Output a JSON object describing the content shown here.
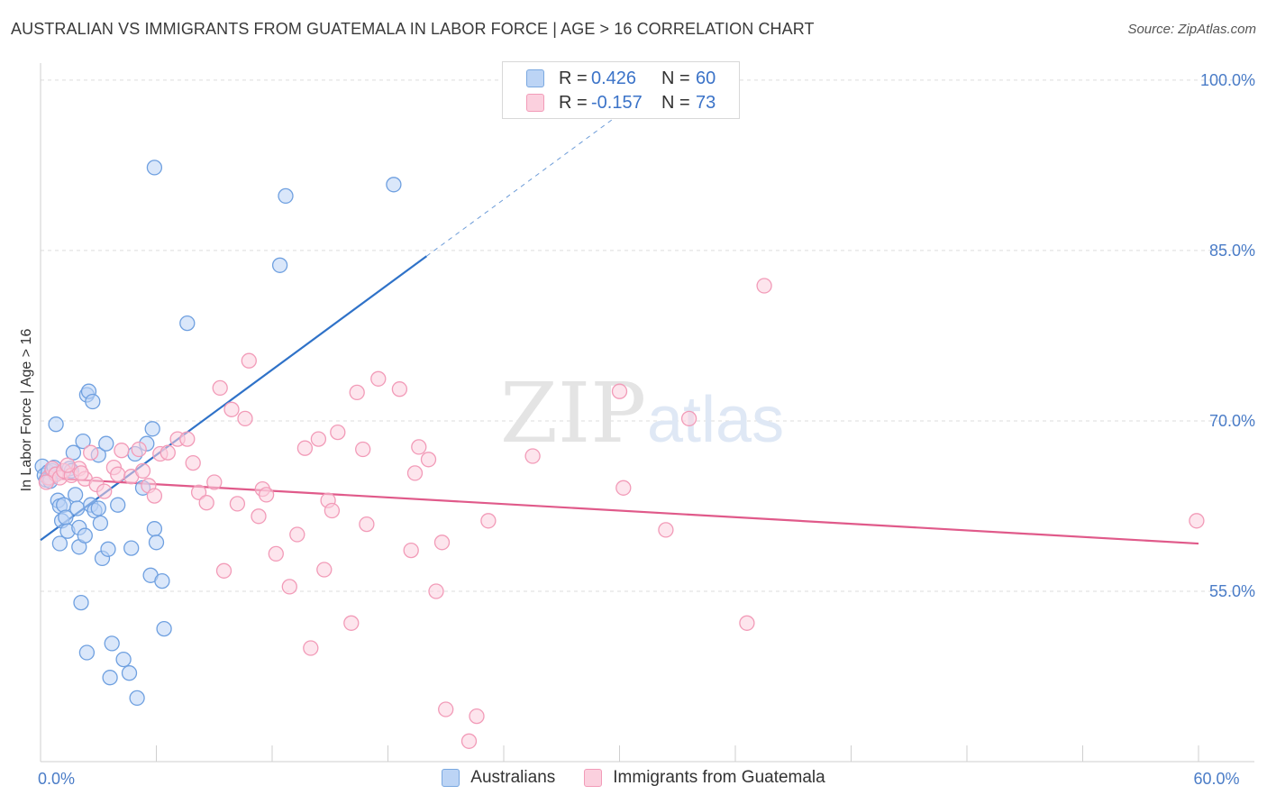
{
  "title": "AUSTRALIAN VS IMMIGRANTS FROM GUATEMALA IN LABOR FORCE | AGE > 16 CORRELATION CHART",
  "source": "Source: ZipAtlas.com",
  "watermark": {
    "zip": "ZIP",
    "atlas": "atlas"
  },
  "legend": {
    "rows": [
      {
        "r_label": "R =",
        "r_value": "0.426",
        "n_label": "N =",
        "n_value": "60",
        "color": "#7aa8e0",
        "fill": "#bcd4f5"
      },
      {
        "r_label": "R =",
        "r_value": "-0.157",
        "n_label": "N =",
        "n_value": "73",
        "color": "#f29bb8",
        "fill": "#fbd0de"
      }
    ]
  },
  "bottom_legend": [
    {
      "label": "Australians",
      "color": "#7aa8e0",
      "fill": "#bcd4f5"
    },
    {
      "label": "Immigrants from Guatemala",
      "color": "#f29bb8",
      "fill": "#fbd0de"
    }
  ],
  "chart_data": {
    "type": "scatter",
    "title": "AUSTRALIAN VS IMMIGRANTS FROM GUATEMALA IN LABOR FORCE | AGE > 16 CORRELATION CHART",
    "xlabel": "",
    "ylabel": "In Labor Force | Age > 16",
    "xlim": [
      0,
      60
    ],
    "ylim": [
      40,
      101.5
    ],
    "x_tick_labels": [
      {
        "value": 0,
        "label": "0.0%"
      },
      {
        "value": 60,
        "label": "60.0%"
      }
    ],
    "x_minor_ticks": [
      0,
      6,
      12,
      18,
      24,
      30,
      36,
      42,
      48,
      54,
      60
    ],
    "y_ticks": [
      {
        "value": 55,
        "label": "55.0%"
      },
      {
        "value": 70,
        "label": "70.0%"
      },
      {
        "value": 85,
        "label": "85.0%"
      },
      {
        "value": 100,
        "label": "100.0%"
      }
    ],
    "series": [
      {
        "name": "Australians",
        "color": "#6fa0e0",
        "fill": "#bcd4f5",
        "line_color": "#2f72c8",
        "trend": {
          "x0": 0,
          "y0": 59.5,
          "x1": 20,
          "y1": 84.5,
          "dash_to_x": 31
        },
        "points": [
          [
            0.1,
            66.0
          ],
          [
            0.2,
            65.2
          ],
          [
            0.3,
            64.8
          ],
          [
            0.4,
            65.5
          ],
          [
            0.5,
            65.0
          ],
          [
            0.6,
            65.6
          ],
          [
            0.7,
            65.9
          ],
          [
            0.8,
            65.3
          ],
          [
            0.8,
            69.7
          ],
          [
            0.9,
            63.0
          ],
          [
            1.0,
            62.5
          ],
          [
            1.0,
            59.2
          ],
          [
            1.1,
            61.2
          ],
          [
            1.2,
            62.6
          ],
          [
            1.3,
            61.5
          ],
          [
            1.4,
            60.3
          ],
          [
            1.5,
            65.8
          ],
          [
            1.6,
            65.6
          ],
          [
            1.7,
            67.2
          ],
          [
            1.8,
            63.5
          ],
          [
            1.9,
            62.3
          ],
          [
            2.0,
            58.9
          ],
          [
            2.0,
            60.6
          ],
          [
            2.1,
            54.0
          ],
          [
            2.2,
            68.2
          ],
          [
            2.3,
            59.9
          ],
          [
            2.4,
            49.6
          ],
          [
            2.4,
            72.3
          ],
          [
            2.5,
            72.6
          ],
          [
            2.6,
            62.6
          ],
          [
            2.7,
            71.7
          ],
          [
            2.8,
            62.1
          ],
          [
            3.0,
            67.0
          ],
          [
            3.0,
            62.3
          ],
          [
            3.1,
            61.0
          ],
          [
            3.2,
            57.9
          ],
          [
            3.4,
            68.0
          ],
          [
            3.5,
            58.7
          ],
          [
            3.6,
            47.4
          ],
          [
            3.7,
            50.4
          ],
          [
            4.0,
            62.6
          ],
          [
            4.3,
            49.0
          ],
          [
            4.6,
            47.8
          ],
          [
            4.7,
            58.8
          ],
          [
            4.9,
            67.1
          ],
          [
            5.0,
            45.6
          ],
          [
            5.3,
            64.1
          ],
          [
            5.5,
            68.0
          ],
          [
            5.7,
            56.4
          ],
          [
            5.8,
            69.3
          ],
          [
            5.9,
            60.5
          ],
          [
            6.0,
            59.3
          ],
          [
            6.3,
            55.9
          ],
          [
            6.4,
            51.7
          ],
          [
            7.6,
            78.6
          ],
          [
            5.9,
            92.3
          ],
          [
            12.4,
            83.7
          ],
          [
            12.7,
            89.8
          ],
          [
            18.3,
            90.8
          ],
          [
            0.5,
            64.7
          ]
        ]
      },
      {
        "name": "Immigrants from Guatemala",
        "color": "#f29bb8",
        "fill": "#fbd0de",
        "line_color": "#e05a8a",
        "trend": {
          "x0": 0,
          "y0": 65.0,
          "x1": 60,
          "y1": 59.2
        },
        "points": [
          [
            0.4,
            65.0
          ],
          [
            0.6,
            65.8
          ],
          [
            0.8,
            65.3
          ],
          [
            1.0,
            65.0
          ],
          [
            1.2,
            65.6
          ],
          [
            1.6,
            65.2
          ],
          [
            2.0,
            65.8
          ],
          [
            2.3,
            64.9
          ],
          [
            2.6,
            67.2
          ],
          [
            2.9,
            64.4
          ],
          [
            3.3,
            63.8
          ],
          [
            3.8,
            65.9
          ],
          [
            4.0,
            65.3
          ],
          [
            4.2,
            67.4
          ],
          [
            4.7,
            65.1
          ],
          [
            5.1,
            67.5
          ],
          [
            5.3,
            65.6
          ],
          [
            5.6,
            64.3
          ],
          [
            5.9,
            63.4
          ],
          [
            6.2,
            67.1
          ],
          [
            6.6,
            67.2
          ],
          [
            7.1,
            68.4
          ],
          [
            7.6,
            68.4
          ],
          [
            7.9,
            66.3
          ],
          [
            8.2,
            63.7
          ],
          [
            8.6,
            62.8
          ],
          [
            9.0,
            64.6
          ],
          [
            9.3,
            72.9
          ],
          [
            9.5,
            56.8
          ],
          [
            9.9,
            71.0
          ],
          [
            10.2,
            62.7
          ],
          [
            10.6,
            70.2
          ],
          [
            10.8,
            75.3
          ],
          [
            11.3,
            61.6
          ],
          [
            11.5,
            64.0
          ],
          [
            11.7,
            63.5
          ],
          [
            12.2,
            58.3
          ],
          [
            12.9,
            55.4
          ],
          [
            13.3,
            60.0
          ],
          [
            13.7,
            67.6
          ],
          [
            14.0,
            50.0
          ],
          [
            14.4,
            68.4
          ],
          [
            14.7,
            56.9
          ],
          [
            14.9,
            63.0
          ],
          [
            15.1,
            62.1
          ],
          [
            15.4,
            69.0
          ],
          [
            16.1,
            52.2
          ],
          [
            16.4,
            72.5
          ],
          [
            16.7,
            67.5
          ],
          [
            16.9,
            60.9
          ],
          [
            17.5,
            73.7
          ],
          [
            18.6,
            72.8
          ],
          [
            19.2,
            58.6
          ],
          [
            19.4,
            65.4
          ],
          [
            19.6,
            67.7
          ],
          [
            20.1,
            66.6
          ],
          [
            20.5,
            55.0
          ],
          [
            20.8,
            59.3
          ],
          [
            21.0,
            44.6
          ],
          [
            22.2,
            41.8
          ],
          [
            22.6,
            44.0
          ],
          [
            23.2,
            61.2
          ],
          [
            25.5,
            66.9
          ],
          [
            30.0,
            72.6
          ],
          [
            30.2,
            64.1
          ],
          [
            32.4,
            60.4
          ],
          [
            33.6,
            70.2
          ],
          [
            36.6,
            52.2
          ],
          [
            37.5,
            81.9
          ],
          [
            59.9,
            61.2
          ],
          [
            0.3,
            64.6
          ],
          [
            1.4,
            66.1
          ],
          [
            2.1,
            65.4
          ]
        ]
      }
    ]
  }
}
